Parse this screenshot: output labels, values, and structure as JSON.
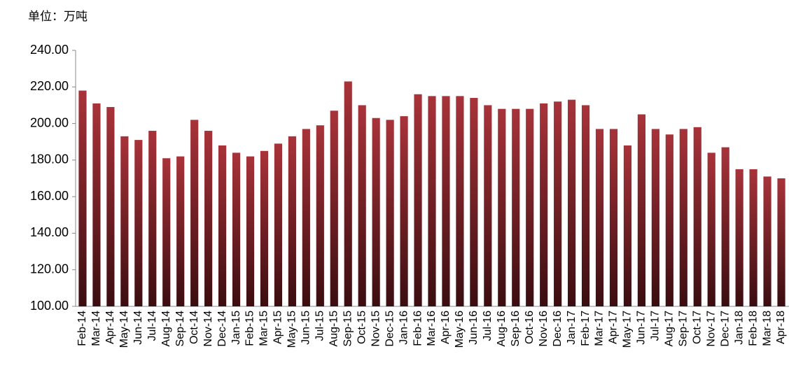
{
  "chart_data": {
    "type": "bar",
    "y_label": "单位：万吨",
    "categories": [
      "Feb-14",
      "Mar-14",
      "Apr-14",
      "May-14",
      "Jun-14",
      "Jul-14",
      "Aug-14",
      "Sep-14",
      "Oct-14",
      "Nov-14",
      "Dec-14",
      "Jan-15",
      "Feb-15",
      "Mar-15",
      "Apr-15",
      "May-15",
      "Jun-15",
      "Jul-15",
      "Aug-15",
      "Sep-15",
      "Oct-15",
      "Nov-15",
      "Dec-15",
      "Jan-16",
      "Feb-16",
      "Mar-16",
      "Apr-16",
      "May-16",
      "Jun-16",
      "Jul-16",
      "Aug-16",
      "Sep-16",
      "Oct-16",
      "Nov-16",
      "Dec-16",
      "Jan-17",
      "Feb-17",
      "Mar-17",
      "Apr-17",
      "May-17",
      "Jun-17",
      "Jul-17",
      "Aug-17",
      "Sep-17",
      "Oct-17",
      "Nov-17",
      "Dec-17",
      "Jan-18",
      "Feb-18",
      "Mar-18",
      "Apr-18"
    ],
    "values": [
      218,
      211,
      209,
      193,
      191,
      196,
      181,
      182,
      202,
      196,
      188,
      184,
      182,
      185,
      189,
      193,
      197,
      199,
      207,
      223,
      210,
      203,
      202,
      204,
      216,
      215,
      215,
      215,
      214,
      210,
      208,
      208,
      208,
      211,
      212,
      213,
      210,
      197,
      197,
      188,
      205,
      197,
      194,
      197,
      198,
      184,
      187,
      175,
      175,
      171,
      170
    ],
    "color": "#a8333a",
    "ylim": [
      100,
      240
    ],
    "yticks": [
      {
        "value": 100,
        "label": "100.00"
      },
      {
        "value": 120,
        "label": "120.00"
      },
      {
        "value": 140,
        "label": "140.00"
      },
      {
        "value": 160,
        "label": "160.00"
      },
      {
        "value": 180,
        "label": "180.00"
      },
      {
        "value": 200,
        "label": "200.00"
      },
      {
        "value": 220,
        "label": "220.00"
      },
      {
        "value": 240,
        "label": "240.00"
      }
    ],
    "grid": false
  }
}
